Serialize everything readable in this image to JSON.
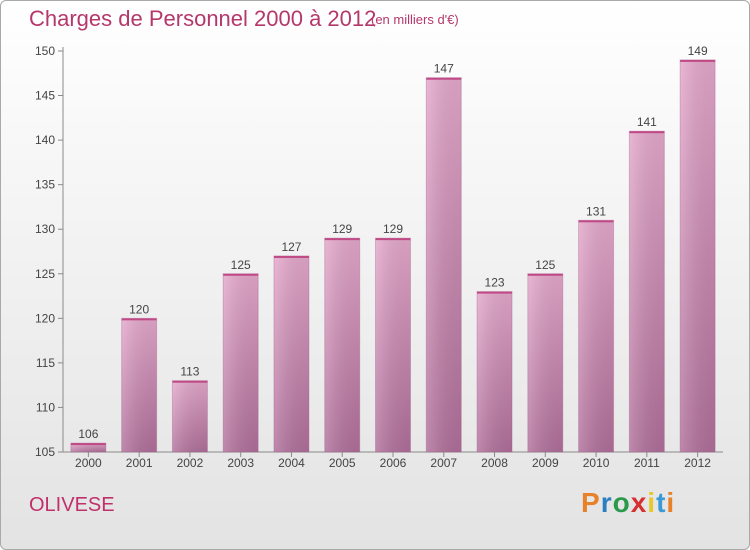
{
  "header": {
    "title": "Charges de Personnel 2000 à 2012",
    "subtitle": "(en milliers d'€)"
  },
  "footer": {
    "place": "OLIVESE",
    "logo": "Proxiti"
  },
  "colors": {
    "title": "#b5386a",
    "bar_light": "#e4a8cb",
    "bar_dark": "#b06f9a",
    "logo_letters": [
      "#e8822a",
      "#2a7fc0",
      "#2a9a4a",
      "#d63030",
      "#e8c82a",
      "#3a9ad6",
      "#e8822a"
    ]
  },
  "chart_data": {
    "type": "bar",
    "title": "Charges de Personnel 2000 à 2012",
    "subtitle": "(en milliers d'€)",
    "xlabel": "",
    "ylabel": "",
    "categories": [
      "2000",
      "2001",
      "2002",
      "2003",
      "2004",
      "2005",
      "2006",
      "2007",
      "2008",
      "2009",
      "2010",
      "2011",
      "2012"
    ],
    "values": [
      106,
      120,
      113,
      125,
      127,
      129,
      129,
      147,
      123,
      125,
      131,
      141,
      149
    ],
    "ylim": [
      105,
      150
    ],
    "yticks": [
      105,
      110,
      115,
      120,
      125,
      130,
      135,
      140,
      145,
      150
    ],
    "grid": false,
    "data_labels": true
  }
}
